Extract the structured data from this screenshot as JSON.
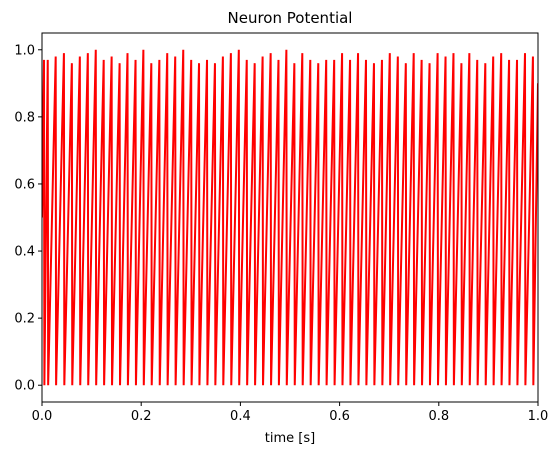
{
  "chart_data": {
    "type": "line",
    "title": "Neuron Potential",
    "xlabel": "time [s]",
    "ylabel": "",
    "xlim": [
      0.0,
      1.0
    ],
    "ylim": [
      -0.05,
      1.05
    ],
    "x_ticks": [
      "0.0",
      "0.2",
      "0.4",
      "0.6",
      "0.8",
      "1.0"
    ],
    "y_ticks": [
      "0.0",
      "0.2",
      "0.4",
      "0.6",
      "0.8",
      "1.0"
    ],
    "grid": false,
    "legend": "none",
    "series": [
      {
        "color": "#ff0000",
        "spike_times": [
          0.0048,
          0.0124,
          0.0284,
          0.045,
          0.061,
          0.0771,
          0.0932,
          0.1092,
          0.1252,
          0.1412,
          0.1573,
          0.1732,
          0.1894,
          0.2052,
          0.2212,
          0.2374,
          0.2533,
          0.2694,
          0.2856,
          0.3016,
          0.3174,
          0.3335,
          0.3495,
          0.3655,
          0.3816,
          0.3976,
          0.4136,
          0.4296,
          0.4456,
          0.4618,
          0.4776,
          0.4935,
          0.5096,
          0.5256,
          0.5417,
          0.5578,
          0.5738,
          0.5899,
          0.6058,
          0.6219,
          0.638,
          0.654,
          0.6701,
          0.6862,
          0.702,
          0.7182,
          0.7343,
          0.7502,
          0.7662,
          0.7822,
          0.7984,
          0.8144,
          0.8304,
          0.8464,
          0.8624,
          0.8783,
          0.8946,
          0.9105,
          0.9266,
          0.9425,
          0.9585,
          0.9746,
          0.9906
        ],
        "peaks": [
          0.97,
          0.97,
          0.98,
          0.99,
          0.96,
          0.98,
          0.99,
          1.0,
          0.97,
          0.98,
          0.96,
          0.99,
          0.97,
          1.0,
          0.96,
          0.97,
          0.99,
          0.98,
          1.0,
          0.97,
          0.96,
          0.97,
          0.96,
          0.98,
          0.99,
          1.0,
          0.97,
          0.96,
          0.98,
          0.99,
          0.97,
          1.0,
          0.96,
          0.99,
          0.97,
          0.96,
          0.97,
          0.97,
          0.99,
          0.97,
          0.99,
          0.97,
          0.96,
          0.97,
          0.99,
          0.98,
          0.96,
          0.99,
          0.97,
          0.96,
          0.99,
          0.98,
          0.99,
          0.96,
          0.99,
          0.97,
          0.96,
          0.98,
          0.99,
          0.97,
          0.97,
          0.99,
          0.98
        ],
        "start_value": 0.5,
        "end_value": 0.9
      }
    ]
  }
}
